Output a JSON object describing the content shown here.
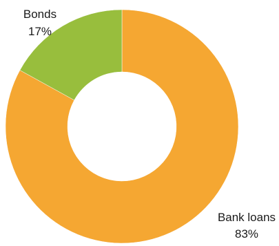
{
  "chart_data": {
    "type": "pie",
    "variant": "donut",
    "categories": [
      "Bank loans",
      "Bonds"
    ],
    "values": [
      83,
      17
    ],
    "value_labels": [
      "83%",
      "17%"
    ],
    "colors": [
      "#F5A732",
      "#98BE3D"
    ],
    "start_angle": "top",
    "direction": "clockwise",
    "legend": "none",
    "title": "",
    "labels_outside": true
  }
}
